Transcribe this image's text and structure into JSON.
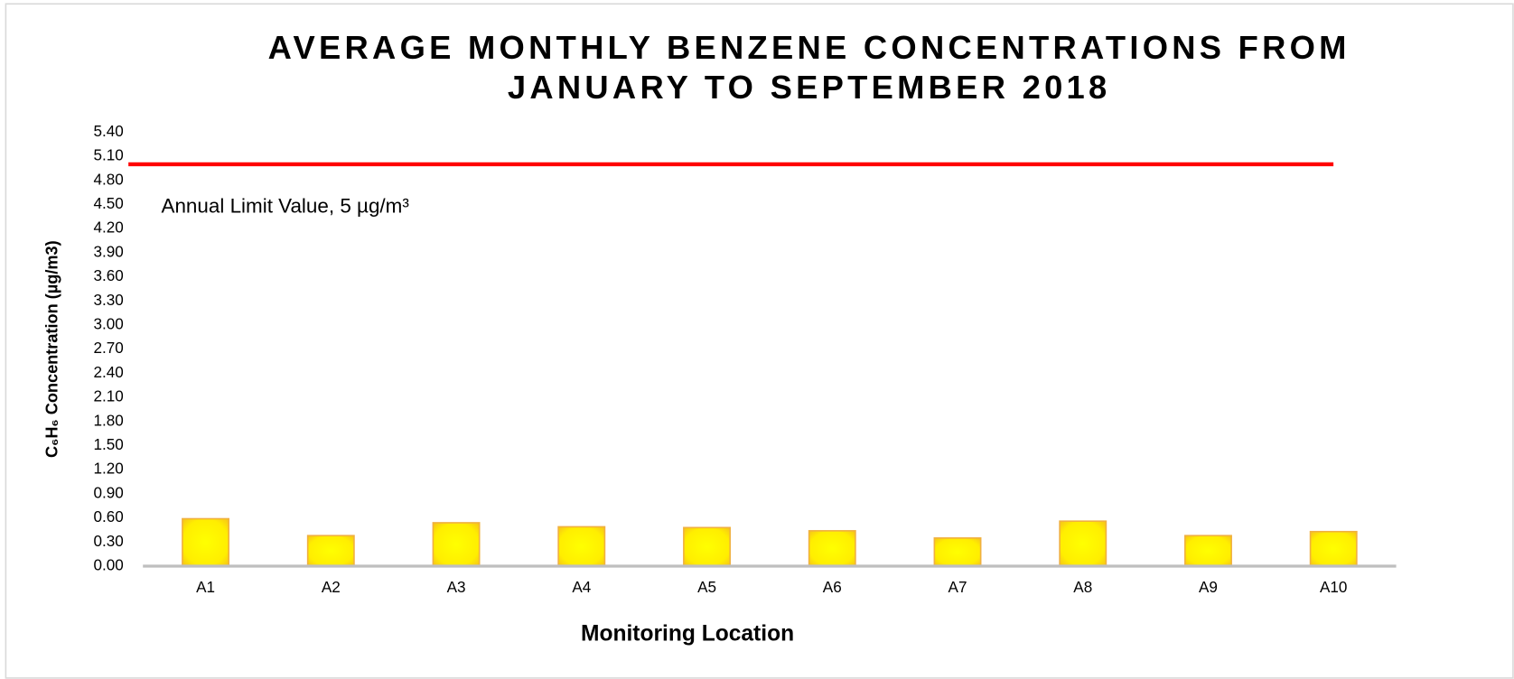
{
  "chart_data": {
    "type": "bar",
    "title": [
      "AVERAGE MONTHLY BENZENE CONCENTRATIONS FROM",
      "JANUARY TO SEPTEMBER 2018"
    ],
    "x_label": "Monitoring Location",
    "y_label": "C₆H₆ Concentration (µg/m3)",
    "categories": [
      "A1",
      "A2",
      "A3",
      "A4",
      "A5",
      "A6",
      "A7",
      "A8",
      "A9",
      "A10"
    ],
    "values": [
      0.59,
      0.38,
      0.54,
      0.49,
      0.48,
      0.44,
      0.35,
      0.56,
      0.38,
      0.43
    ],
    "color": "#ffff00",
    "ylim": [
      0,
      5.4
    ],
    "yticks": [
      {
        "value": 0,
        "label": "0.00"
      },
      {
        "value": 0.3,
        "label": "0.30"
      },
      {
        "value": 0.6,
        "label": "0.60"
      },
      {
        "value": 0.9,
        "label": "0.90"
      },
      {
        "value": 1.2,
        "label": "1.20"
      },
      {
        "value": 1.5,
        "label": "1.50"
      },
      {
        "value": 1.8,
        "label": "1.80"
      },
      {
        "value": 2.1,
        "label": "2.10"
      },
      {
        "value": 2.4,
        "label": "2.40"
      },
      {
        "value": 2.7,
        "label": "2.70"
      },
      {
        "value": 3.0,
        "label": "3.00"
      },
      {
        "value": 3.3,
        "label": "3.30"
      },
      {
        "value": 3.6,
        "label": "3.60"
      },
      {
        "value": 3.9,
        "label": "3.90"
      },
      {
        "value": 4.2,
        "label": "4.20"
      },
      {
        "value": 4.5,
        "label": "4.50"
      },
      {
        "value": 4.8,
        "label": "4.80"
      },
      {
        "value": 5.1,
        "label": "5.10"
      },
      {
        "value": 5.4,
        "label": "5.40"
      }
    ],
    "grid": false,
    "limit_line": {
      "value": 5,
      "label": "Annual Limit Value, 5 µg/m³",
      "color": "#ff0000"
    }
  }
}
